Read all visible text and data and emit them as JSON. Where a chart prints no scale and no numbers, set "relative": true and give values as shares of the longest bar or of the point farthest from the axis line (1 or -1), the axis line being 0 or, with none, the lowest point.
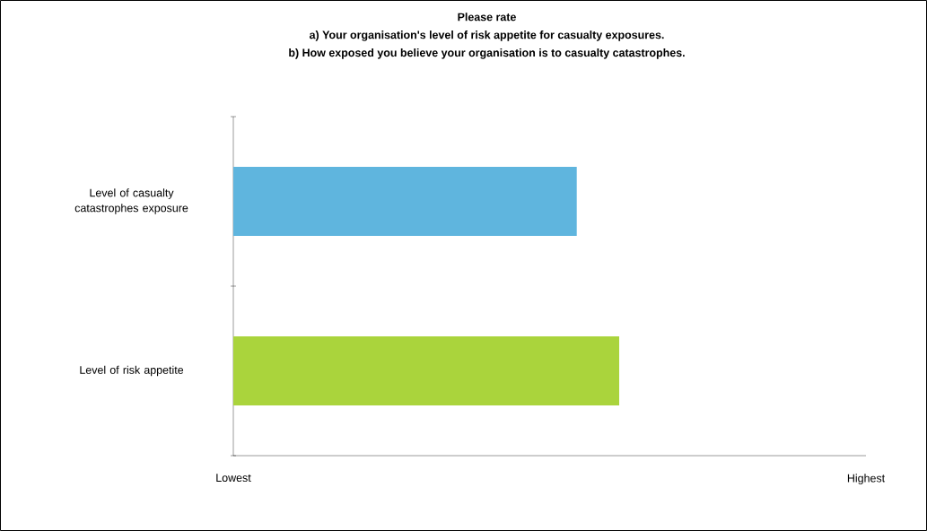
{
  "chart_data": {
    "type": "bar",
    "orientation": "horizontal",
    "title": "Please rate\na) Your organisation's level of risk appetite for casualty exposures.\nb) How exposed you believe your organisation is to casualty catastrophes.",
    "categories": [
      "Level of casualty catastrophes exposure",
      "Level of risk appetite"
    ],
    "values": [
      0.89,
      1
    ],
    "relative": true,
    "colors": [
      "#5fb5de",
      "#aad43c"
    ],
    "annotations": [
      "Lowest",
      "Highest"
    ]
  }
}
